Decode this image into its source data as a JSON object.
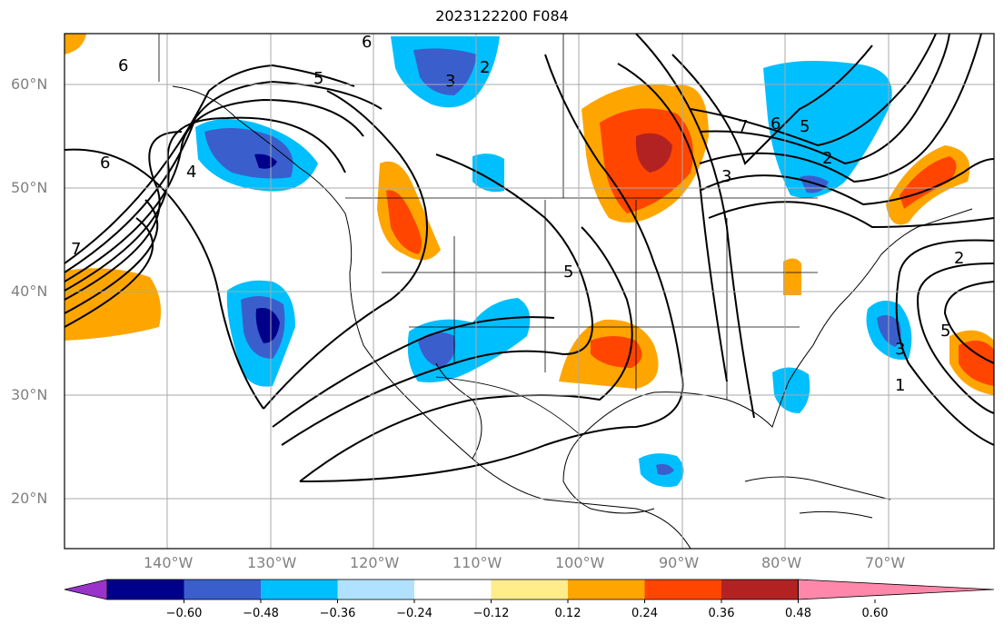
{
  "title": "2023122200 F084",
  "map": {
    "lat_labels": [
      "60°N",
      "50°N",
      "40°N",
      "30°N",
      "20°N"
    ],
    "lon_labels": [
      "140°W",
      "130°W",
      "120°W",
      "110°W",
      "100°W",
      "90°W",
      "80°W",
      "70°W"
    ]
  },
  "colorbar": {
    "tick_labels": [
      "−0.60",
      "−0.48",
      "−0.36",
      "−0.24",
      "−0.12",
      "0.12",
      "0.24",
      "0.36",
      "0.48",
      "0.60"
    ],
    "colors": [
      "#9933cc",
      "#00008b",
      "#3a5fcd",
      "#00bfff",
      "#b0e2ff",
      "#ffffff",
      "#ffec8b",
      "#ffa500",
      "#ff4500",
      "#b22222",
      "#ff88aa"
    ]
  },
  "contour_labels": [
    "6",
    "6",
    "5",
    "6",
    "7",
    "4",
    "3",
    "2",
    "7",
    "6",
    "5",
    "2",
    "3",
    "5",
    "3",
    "5",
    "1",
    "2"
  ]
}
